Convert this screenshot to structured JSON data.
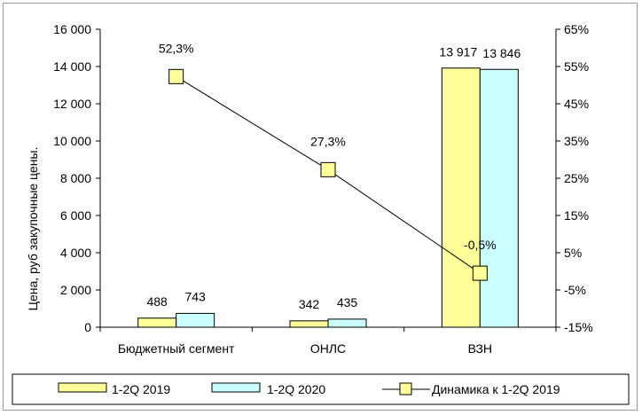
{
  "chart_data": {
    "type": "bar",
    "categories": [
      "Бюджетный сегмент",
      "ОНЛС",
      "ВЗН"
    ],
    "series": [
      {
        "name": "1-2Q 2019",
        "type": "bar",
        "axis": "left",
        "color": "#ffff99",
        "values": [
          488,
          342,
          13917
        ],
        "labels": [
          "488",
          "342",
          "13 917"
        ]
      },
      {
        "name": "1-2Q 2020",
        "type": "bar",
        "axis": "left",
        "color": "#ccffff",
        "values": [
          743,
          435,
          13846
        ],
        "labels": [
          "743",
          "435",
          "13 846"
        ]
      },
      {
        "name": "Динамика к 1-2Q 2019",
        "type": "line",
        "axis": "right",
        "color": "#ffff99",
        "values": [
          52.3,
          27.3,
          -0.5
        ],
        "labels": [
          "52,3%",
          "27,3%",
          "-0,5%"
        ]
      }
    ],
    "ylabel": "Цена, руб закупочные цены.",
    "ylim": [
      0,
      16000
    ],
    "y_ticks": [
      "0",
      "2 000",
      "4 000",
      "6 000",
      "8 000",
      "10 000",
      "12 000",
      "14 000",
      "16 000"
    ],
    "y2lim": [
      -15,
      65
    ],
    "y2_ticks": [
      "-15%",
      "-5%",
      "5%",
      "15%",
      "25%",
      "35%",
      "45%",
      "55%",
      "65%"
    ],
    "grid": false,
    "legend_position": "bottom"
  }
}
